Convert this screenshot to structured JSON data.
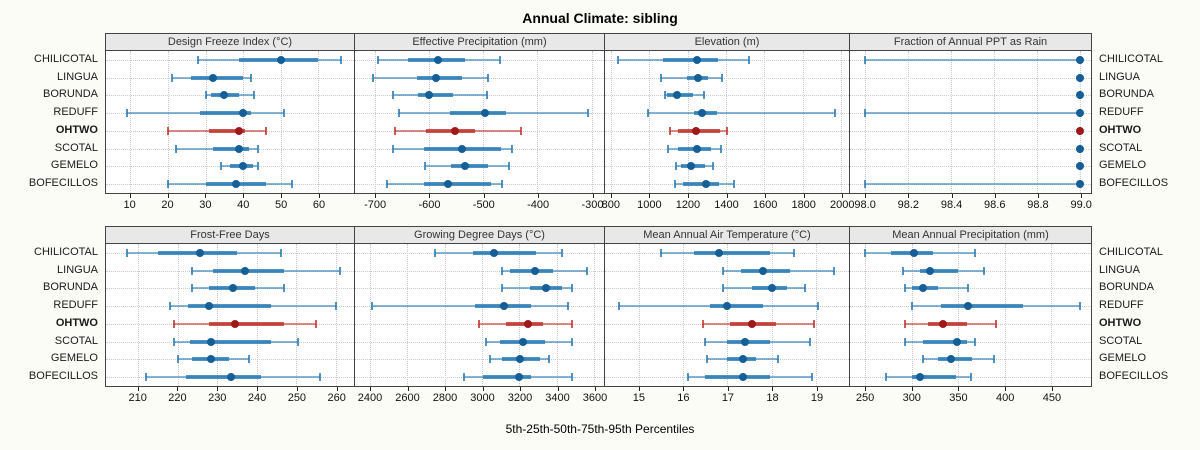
{
  "title": "Annual Climate: sibling",
  "caption": "5th-25th-50th-75th-95th Percentiles",
  "chart_data": {
    "type": "scatter",
    "subtype": "trellis-percentile-dotplot",
    "title": "Annual Climate: sibling",
    "xlabel": "5th-25th-50th-75th-95th Percentiles",
    "percentiles": [
      5,
      25,
      50,
      75,
      95
    ],
    "legend": "none",
    "grid": "dotted",
    "sites": [
      "CHILICOTAL",
      "LINGUA",
      "BORUNDA",
      "REDUFF",
      "OHTWO",
      "SCOTAL",
      "GEMELO",
      "BOFECILLOS"
    ],
    "highlight_site": "OHTWO",
    "colors": {
      "blue": "#2579b5",
      "blue_dark": "#155e96",
      "red": "#c03028",
      "red_dark": "#9e1a1a",
      "grid": "#c9c9c9",
      "header_bg": "#e8e8e8",
      "border": "#444444"
    },
    "panels": [
      {
        "label": "Design Freeze Index (°C)",
        "ticks": [
          10,
          20,
          30,
          40,
          50,
          60
        ],
        "tick_labels": [
          "10",
          "20",
          "30",
          "40",
          "50",
          "60"
        ],
        "xlim": [
          3.5,
          69.5
        ],
        "values": {
          "CHILICOTAL": [
            28,
            39,
            50,
            60,
            66
          ],
          "LINGUA": [
            21,
            26,
            32,
            40,
            42
          ],
          "BORUNDA": [
            30,
            31.5,
            35,
            39,
            43
          ],
          "REDUFF": [
            9,
            28.5,
            40,
            42,
            51
          ],
          "OHTWO": [
            20,
            31,
            39,
            40.5,
            46
          ],
          "SCOTAL": [
            22,
            32,
            39,
            41.5,
            44
          ],
          "GEMELO": [
            34,
            36.5,
            40,
            42.5,
            44
          ],
          "BOFECILLOS": [
            20,
            30,
            38,
            46,
            53
          ]
        }
      },
      {
        "label": "Effective Precipitation (mm)",
        "ticks": [
          -700,
          -600,
          -500,
          -400,
          -300
        ],
        "tick_labels": [
          "-700",
          "-600",
          "-500",
          "-400",
          "-300"
        ],
        "xlim": [
          -737,
          -277
        ],
        "values": {
          "CHILICOTAL": [
            -695,
            -639,
            -583,
            -534,
            -469
          ],
          "LINGUA": [
            -704,
            -623,
            -587,
            -539,
            -491
          ],
          "BORUNDA": [
            -667,
            -620,
            -600,
            -556,
            -494
          ],
          "REDUFF": [
            -655,
            -562,
            -496,
            -458,
            -306
          ],
          "OHTWO": [
            -664,
            -605,
            -553,
            -516,
            -431
          ],
          "SCOTAL": [
            -667,
            -610,
            -539,
            -468,
            -447
          ],
          "GEMELO": [
            -608,
            -559,
            -534,
            -492,
            -453
          ],
          "BOFECILLOS": [
            -677,
            -610,
            -565,
            -485,
            -465
          ]
        }
      },
      {
        "label": "Elevation (m)",
        "ticks": [
          800,
          1000,
          1200,
          1400,
          1600,
          1800,
          2000
        ],
        "tick_labels": [
          "800",
          "1000",
          "1200",
          "1400",
          "1600",
          "1800",
          "2000"
        ],
        "xlim": [
          770,
          2040
        ],
        "values": {
          "CHILICOTAL": [
            840,
            1070,
            1250,
            1360,
            1520
          ],
          "LINGUA": [
            1060,
            1195,
            1255,
            1305,
            1380
          ],
          "BORUNDA": [
            1080,
            1095,
            1145,
            1230,
            1285
          ],
          "REDUFF": [
            995,
            1235,
            1275,
            1355,
            1965
          ],
          "OHTWO": [
            1110,
            1150,
            1245,
            1370,
            1405
          ],
          "SCOTAL": [
            1100,
            1150,
            1250,
            1320,
            1372
          ],
          "GEMELO": [
            1140,
            1165,
            1220,
            1290,
            1330
          ],
          "BOFECILLOS": [
            1135,
            1175,
            1295,
            1365,
            1440
          ]
        }
      },
      {
        "label": "Fraction of Annual PPT as Rain",
        "ticks": [
          98.0,
          98.2,
          98.4,
          98.6,
          98.8,
          99.0
        ],
        "tick_labels": [
          "98.0",
          "98.2",
          "98.4",
          "98.6",
          "98.8",
          "99.0"
        ],
        "xlim": [
          97.93,
          99.05
        ],
        "values": {
          "CHILICOTAL": [
            98.0,
            99.0,
            99.0,
            99.0,
            99.0
          ],
          "LINGUA": [
            99.0,
            99.0,
            99.0,
            99.0,
            99.0
          ],
          "BORUNDA": [
            99.0,
            99.0,
            99.0,
            99.0,
            99.0
          ],
          "REDUFF": [
            98.0,
            99.0,
            99.0,
            99.0,
            99.0
          ],
          "OHTWO": [
            99.0,
            99.0,
            99.0,
            99.0,
            99.0
          ],
          "SCOTAL": [
            99.0,
            99.0,
            99.0,
            99.0,
            99.0
          ],
          "GEMELO": [
            99.0,
            99.0,
            99.0,
            99.0,
            99.0
          ],
          "BOFECILLOS": [
            98.0,
            99.0,
            99.0,
            99.0,
            99.0
          ]
        }
      },
      {
        "label": "Frost-Free Days",
        "ticks": [
          210,
          220,
          230,
          240,
          250,
          260
        ],
        "tick_labels": [
          "210",
          "220",
          "230",
          "240",
          "250",
          "260"
        ],
        "xlim": [
          201.8,
          264.6
        ],
        "values": {
          "CHILICOTAL": [
            207,
            215,
            225.5,
            235,
            246
          ],
          "LINGUA": [
            223.5,
            229,
            237,
            247,
            261
          ],
          "BORUNDA": [
            223.5,
            228,
            234,
            239.5,
            247
          ],
          "REDUFF": [
            218,
            222.5,
            228,
            243.5,
            260
          ],
          "OHTWO": [
            219,
            228,
            234.5,
            247,
            255
          ],
          "SCOTAL": [
            219,
            223,
            228.5,
            243.5,
            250.5
          ],
          "GEMELO": [
            220,
            223.5,
            228.5,
            233,
            238
          ],
          "BOFECILLOS": [
            212,
            222,
            233.5,
            241,
            256
          ]
        }
      },
      {
        "label": "Growing Degree Days (°C)",
        "ticks": [
          2400,
          2600,
          2800,
          3000,
          3200,
          3400,
          3600
        ],
        "tick_labels": [
          "2400",
          "2600",
          "2800",
          "3000",
          "3200",
          "3400",
          "3600"
        ],
        "xlim": [
          2320,
          3653
        ],
        "values": {
          "CHILICOTAL": [
            2750,
            2950,
            3065,
            3290,
            3430
          ],
          "LINGUA": [
            3105,
            3150,
            3285,
            3380,
            3560
          ],
          "BORUNDA": [
            3105,
            3255,
            3340,
            3430,
            3480
          ],
          "REDUFF": [
            2410,
            2965,
            3120,
            3260,
            3460
          ],
          "OHTWO": [
            2985,
            3130,
            3245,
            3325,
            3480
          ],
          "SCOTAL": [
            3020,
            3095,
            3220,
            3335,
            3480
          ],
          "GEMELO": [
            3045,
            3105,
            3205,
            3310,
            3360
          ],
          "BOFECILLOS": [
            2905,
            3005,
            3200,
            3260,
            3480
          ]
        }
      },
      {
        "label": "Mean Annual Air Temperature (°C)",
        "ticks": [
          15,
          16,
          17,
          18,
          19
        ],
        "tick_labels": [
          "15",
          "16",
          "17",
          "18",
          "19"
        ],
        "xlim": [
          14.24,
          19.74
        ],
        "values": {
          "CHILICOTAL": [
            15.5,
            16.25,
            16.8,
            17.95,
            18.5
          ],
          "LINGUA": [
            16.9,
            17.3,
            17.8,
            18.4,
            19.4
          ],
          "BORUNDA": [
            16.9,
            17.55,
            18.0,
            18.35,
            18.75
          ],
          "REDUFF": [
            14.55,
            16.6,
            17.0,
            17.8,
            19.05
          ],
          "OHTWO": [
            16.45,
            17.05,
            17.55,
            18.1,
            18.95
          ],
          "SCOTAL": [
            16.5,
            17.0,
            17.4,
            17.95,
            18.85
          ],
          "GEMELO": [
            16.55,
            17.0,
            17.35,
            17.65,
            18.15
          ],
          "BOFECILLOS": [
            16.1,
            16.5,
            17.35,
            17.95,
            18.9
          ]
        }
      },
      {
        "label": "Mean Annual Precipitation (mm)",
        "ticks": [
          250,
          300,
          350,
          400,
          450
        ],
        "tick_labels": [
          "250",
          "300",
          "350",
          "400",
          "450"
        ],
        "xlim": [
          233.9,
          492.9
        ],
        "values": {
          "CHILICOTAL": [
            250,
            278,
            303,
            323,
            368
          ],
          "LINGUA": [
            291,
            309,
            320,
            350,
            378
          ],
          "BORUNDA": [
            293,
            300,
            312.5,
            328.5,
            361
          ],
          "REDUFF": [
            300,
            332,
            361,
            420,
            481
          ],
          "OHTWO": [
            293,
            318,
            334,
            360,
            391
          ],
          "SCOTAL": [
            293.5,
            312.5,
            349,
            360,
            368
          ],
          "GEMELO": [
            312,
            329,
            342,
            365,
            389
          ],
          "BOFECILLOS": [
            273,
            300,
            309,
            348,
            364
          ]
        }
      }
    ]
  }
}
